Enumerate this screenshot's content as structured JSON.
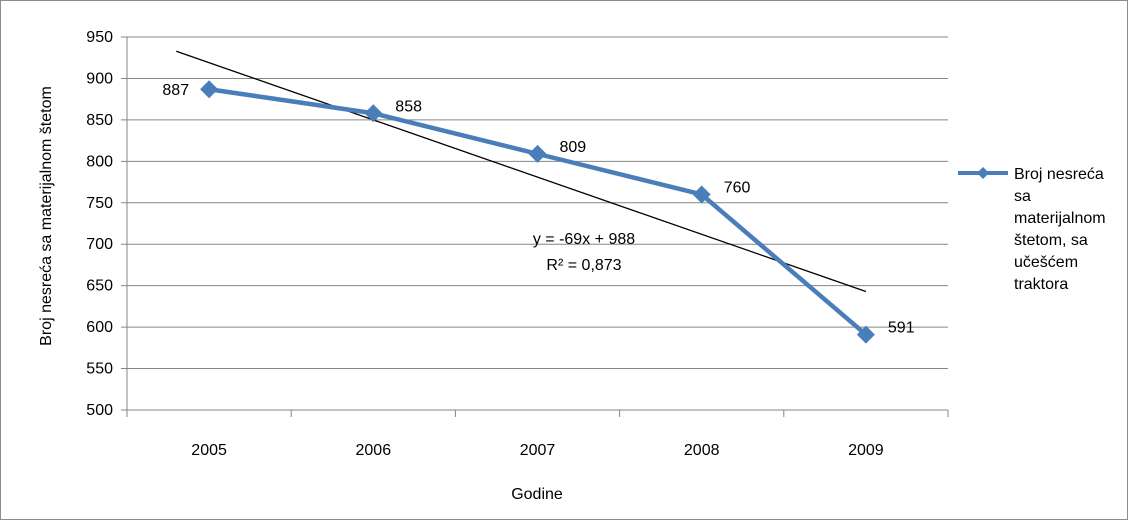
{
  "chart_data": {
    "type": "line",
    "categories": [
      "2005",
      "2006",
      "2007",
      "2008",
      "2009"
    ],
    "series": [
      {
        "name": "Broj nesreća sa materijalnom štetom, sa učešćem traktora",
        "values": [
          887,
          858,
          809,
          760,
          591
        ],
        "color": "#4a7ebb",
        "marker": "diamond"
      }
    ],
    "trendline": {
      "type": "linear",
      "slope": -69,
      "intercept": 988,
      "equation": "y = -69x + 988",
      "r_squared": "R² = 0,873",
      "color": "#000000"
    },
    "title": "",
    "xlabel": "Godine",
    "ylabel": "Broj nesreća sa materijalnom štetom",
    "ylim": [
      500,
      950
    ],
    "yticks": [
      "500",
      "550",
      "600",
      "650",
      "700",
      "750",
      "800",
      "850",
      "900",
      "950"
    ],
    "data_labels": [
      "887",
      "858",
      "809",
      "760",
      "591"
    ],
    "legend": {
      "position": "right",
      "lines": [
        "Broj nesreća",
        "sa",
        "materijalnom",
        "štetom, sa",
        "učešćem",
        "traktora"
      ]
    },
    "grid": "horizontal"
  }
}
